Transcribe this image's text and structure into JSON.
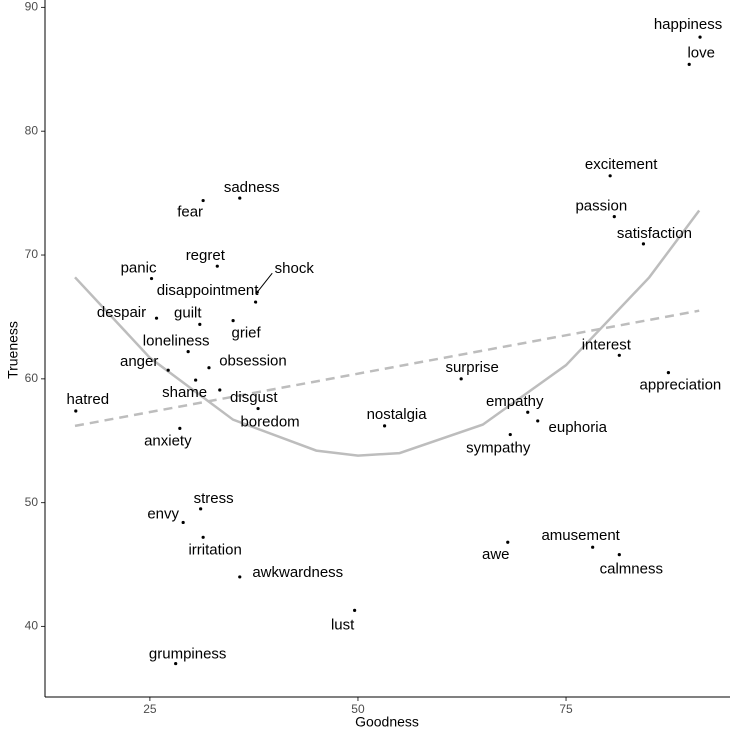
{
  "chart_data": {
    "type": "scatter",
    "x_label": "Goodness",
    "y_label": "Trueness",
    "xlim": [
      12.4,
      94.7
    ],
    "ylim": [
      34.3,
      90.6
    ],
    "xticks": [
      25,
      50,
      75
    ],
    "yticks": [
      40,
      50,
      60,
      70,
      80,
      90
    ],
    "point_color": "#000000",
    "labels": [
      "happiness",
      "love",
      "excitement",
      "passion",
      "satisfaction",
      "interest",
      "appreciation",
      "surprise",
      "empathy",
      "euphoria",
      "sympathy",
      "nostalgia",
      "awe",
      "amusement",
      "calmness",
      "lust",
      "sadness",
      "fear",
      "regret",
      "shock",
      "panic",
      "disappointment",
      "despair",
      "guilt",
      "grief",
      "loneliness",
      "anger",
      "obsession",
      "shame",
      "disgust",
      "boredom",
      "hatred",
      "anxiety",
      "stress",
      "envy",
      "irritation",
      "awkwardness",
      "grumpiness"
    ],
    "x": [
      91.1,
      89.8,
      80.3,
      80.8,
      84.3,
      81.4,
      87.3,
      62.4,
      70.4,
      71.6,
      68.3,
      53.2,
      68.0,
      78.2,
      81.4,
      49.6,
      35.8,
      31.4,
      33.1,
      37.9,
      25.2,
      37.7,
      25.8,
      31.0,
      35.0,
      29.6,
      27.2,
      32.1,
      30.5,
      33.4,
      38.0,
      16.1,
      28.6,
      31.1,
      29.0,
      31.4,
      35.8,
      28.1
    ],
    "y": [
      87.6,
      85.4,
      76.4,
      73.1,
      70.9,
      61.9,
      60.5,
      60.0,
      57.3,
      56.6,
      55.5,
      56.2,
      46.8,
      46.4,
      45.8,
      41.3,
      74.6,
      74.4,
      69.1,
      67.0,
      68.1,
      66.2,
      64.9,
      64.4,
      64.7,
      62.2,
      60.7,
      60.9,
      59.9,
      59.1,
      57.6,
      57.4,
      56.0,
      49.5,
      48.4,
      47.2,
      44.0,
      37.0
    ],
    "fits": [
      {
        "style": "solid",
        "color": "#bdbdbd",
        "x": [
          16,
          25,
          35,
          45,
          50,
          55,
          65,
          75,
          85,
          91
        ],
        "y": [
          68.2,
          61.7,
          56.7,
          54.2,
          53.8,
          54.0,
          56.3,
          61.1,
          68.2,
          73.6
        ]
      },
      {
        "style": "dashed",
        "color": "#bdbdbd",
        "x": [
          16,
          91
        ],
        "y": [
          56.2,
          65.5
        ]
      }
    ]
  }
}
